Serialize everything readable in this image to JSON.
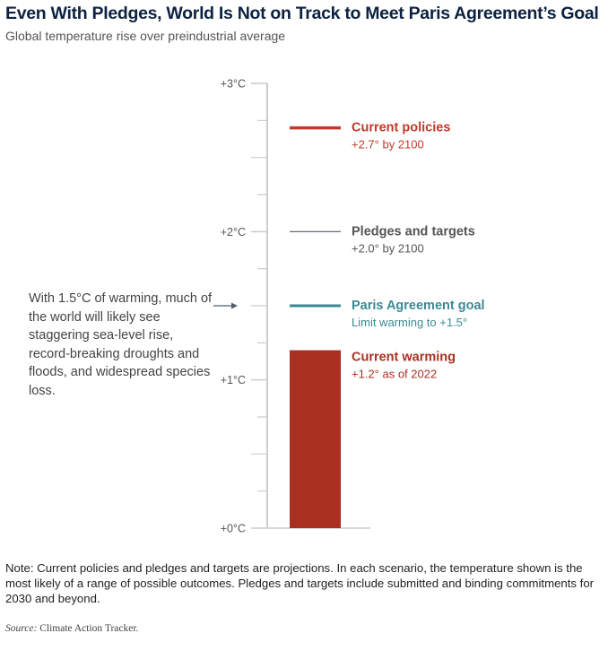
{
  "title": "Even With Pledges, World Is Not on Track to Meet Paris Agreement’s Goal",
  "subtitle": "Global temperature rise over preindustrial average",
  "annotation": "With 1.5°C of warming, much of the world will likely see staggering sea-level rise, record-breaking droughts and floods, and widespread species loss.",
  "note": "Note: Current policies and pledges and targets are projections. In each scenario, the temperature shown is the most likely of a range of possible outcomes. Pledges and targets include submitted and binding commitments for 2030 and beyond.",
  "source_label": "Source:",
  "source_text": "Climate Action Tracker.",
  "colors": {
    "red": "#a93021",
    "gray_line": "#555c66",
    "teal": "#3a8a93",
    "axis": "#cccccc",
    "text_gray": "#555555"
  },
  "chart_data": {
    "type": "bar",
    "title": "Even With Pledges, World Is Not on Track to Meet Paris Agreement’s Goal",
    "ylabel": "Global temperature rise over preindustrial average",
    "ylim": [
      0,
      3
    ],
    "yticks": [
      0,
      1,
      2,
      3
    ],
    "ytick_labels": [
      "+0°C",
      "+1°C",
      "+2°C",
      "+3°C"
    ],
    "minor_tick_step": 0.25,
    "grid": false,
    "bar": {
      "name": "Current warming",
      "value": 1.2,
      "label": "Current warming",
      "sublabel": "+1.2° as of 2022",
      "color": "#a93021"
    },
    "markers": [
      {
        "name": "Current policies",
        "value": 2.7,
        "label": "Current policies",
        "sublabel": "+2.7° by 2100",
        "color": "#c0392b",
        "style": "thick"
      },
      {
        "name": "Pledges and targets",
        "value": 2.0,
        "label": "Pledges and targets",
        "sublabel": "+2.0° by 2100",
        "color": "#555c66",
        "style": "thin",
        "label_color": "#555555"
      },
      {
        "name": "Paris Agreement goal",
        "value": 1.5,
        "label": "Paris Agreement goal",
        "sublabel": "Limit warming to +1.5°",
        "color": "#3a8a93",
        "style": "medium"
      }
    ],
    "annotation_arrow_target": 1.5
  }
}
